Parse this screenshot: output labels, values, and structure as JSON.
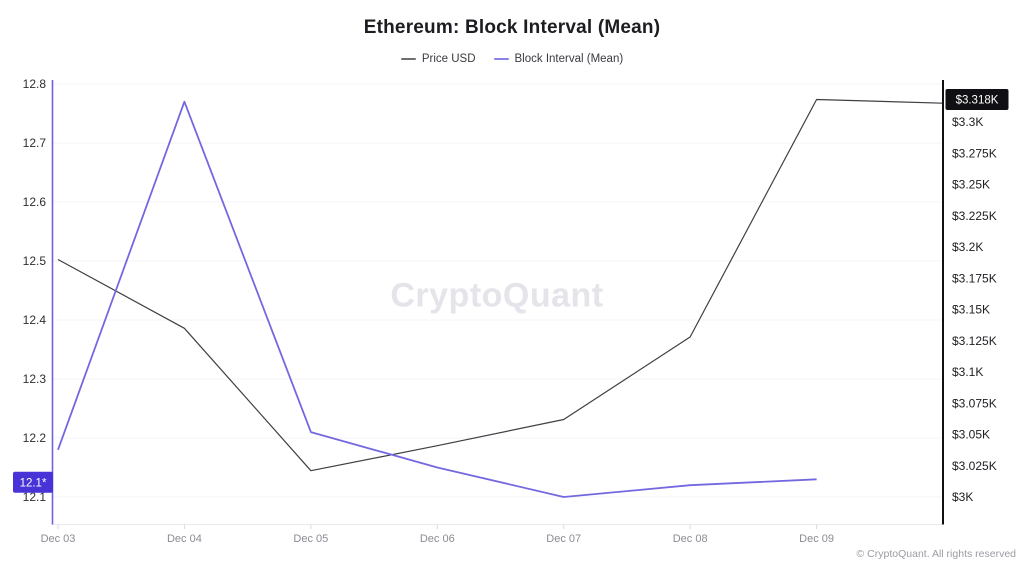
{
  "header": {
    "title": "Ethereum: Block Interval (Mean)"
  },
  "legend": [
    {
      "label": "Price USD",
      "color": "#6e6e73"
    },
    {
      "label": "Block Interval (Mean)",
      "color": "#8a82ea"
    }
  ],
  "watermark": "CryptoQuant",
  "footer": "© CryptoQuant. All rights reserved",
  "chart_data": {
    "type": "line",
    "title": "Ethereum: Block Interval (Mean)",
    "x_labels": [
      "Dec 03",
      "Dec 04",
      "Dec 05",
      "Dec 06",
      "Dec 07",
      "Dec 08",
      "Dec 09"
    ],
    "x_slots": 8,
    "series": [
      {
        "name": "Price USD",
        "axis": "right",
        "color": "#3f3f44",
        "unit": "USD (K)",
        "values": [
          3.19,
          3.135,
          3.021,
          3.041,
          3.062,
          3.128,
          3.318,
          3.315
        ],
        "badge_label": "$3.318K",
        "badge_value": 3.318,
        "badge_bg": "#101014",
        "badge_fg": "#ffffff"
      },
      {
        "name": "Block Interval (Mean)",
        "axis": "left",
        "color": "#7468e0",
        "unit": "seconds",
        "values": [
          12.18,
          12.77,
          12.21,
          12.15,
          12.1,
          12.12,
          12.13,
          null
        ],
        "badge_label": "12.1*",
        "badge_value": 12.125,
        "badge_bg": "#4733d6",
        "badge_fg": "#ffffff"
      }
    ],
    "left_axis": {
      "tick_labels": [
        "12.8",
        "12.7",
        "12.6",
        "12.5",
        "12.4",
        "12.3",
        "12.2",
        "12.1"
      ],
      "tick_values": [
        12.8,
        12.7,
        12.6,
        12.5,
        12.4,
        12.3,
        12.2,
        12.1
      ],
      "range": [
        12.8,
        12.1
      ],
      "axis_color": "#6e62e0"
    },
    "right_axis": {
      "tick_labels": [
        "$3.3K",
        "$3.275K",
        "$3.25K",
        "$3.225K",
        "$3.2K",
        "$3.175K",
        "$3.15K",
        "$3.125K",
        "$3.1K",
        "$3.075K",
        "$3.05K",
        "$3.025K",
        "$3K"
      ],
      "tick_values": [
        3.3,
        3.275,
        3.25,
        3.225,
        3.2,
        3.175,
        3.15,
        3.125,
        3.1,
        3.075,
        3.05,
        3.025,
        3.0
      ],
      "range": [
        3.3,
        3.0
      ],
      "axis_color": "#101014"
    },
    "grid": true,
    "legend_position": "top"
  }
}
